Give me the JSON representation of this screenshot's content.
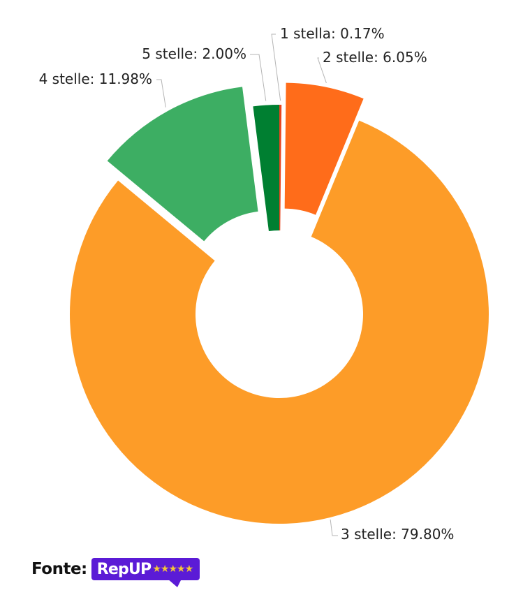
{
  "chart_data": {
    "type": "pie",
    "variant": "donut",
    "start_angle_deg": 0,
    "exploded": [
      "4 stelle",
      "2 stelle"
    ],
    "slices": [
      {
        "category": "1 stella",
        "value": 0.17,
        "label": "1 stella: 0.17%",
        "color": "#e8441f"
      },
      {
        "category": "2 stelle",
        "value": 6.05,
        "label": "2 stelle: 6.05%",
        "color": "#ff6c1a"
      },
      {
        "category": "3 stelle",
        "value": 79.8,
        "label": "3 stelle: 79.80%",
        "color": "#fd9c28"
      },
      {
        "category": "4 stelle",
        "value": 11.98,
        "label": "4 stelle: 11.98%",
        "color": "#3dae63"
      },
      {
        "category": "5 stelle",
        "value": 2.0,
        "label": "5 stelle: 2.00%",
        "color": "#007f31"
      }
    ]
  },
  "source": {
    "label": "Fonte:",
    "logo_text": "RepUP",
    "logo_stars": "★★★★★",
    "logo_color": "#5b1bd6",
    "star_color": "#f6c636"
  }
}
